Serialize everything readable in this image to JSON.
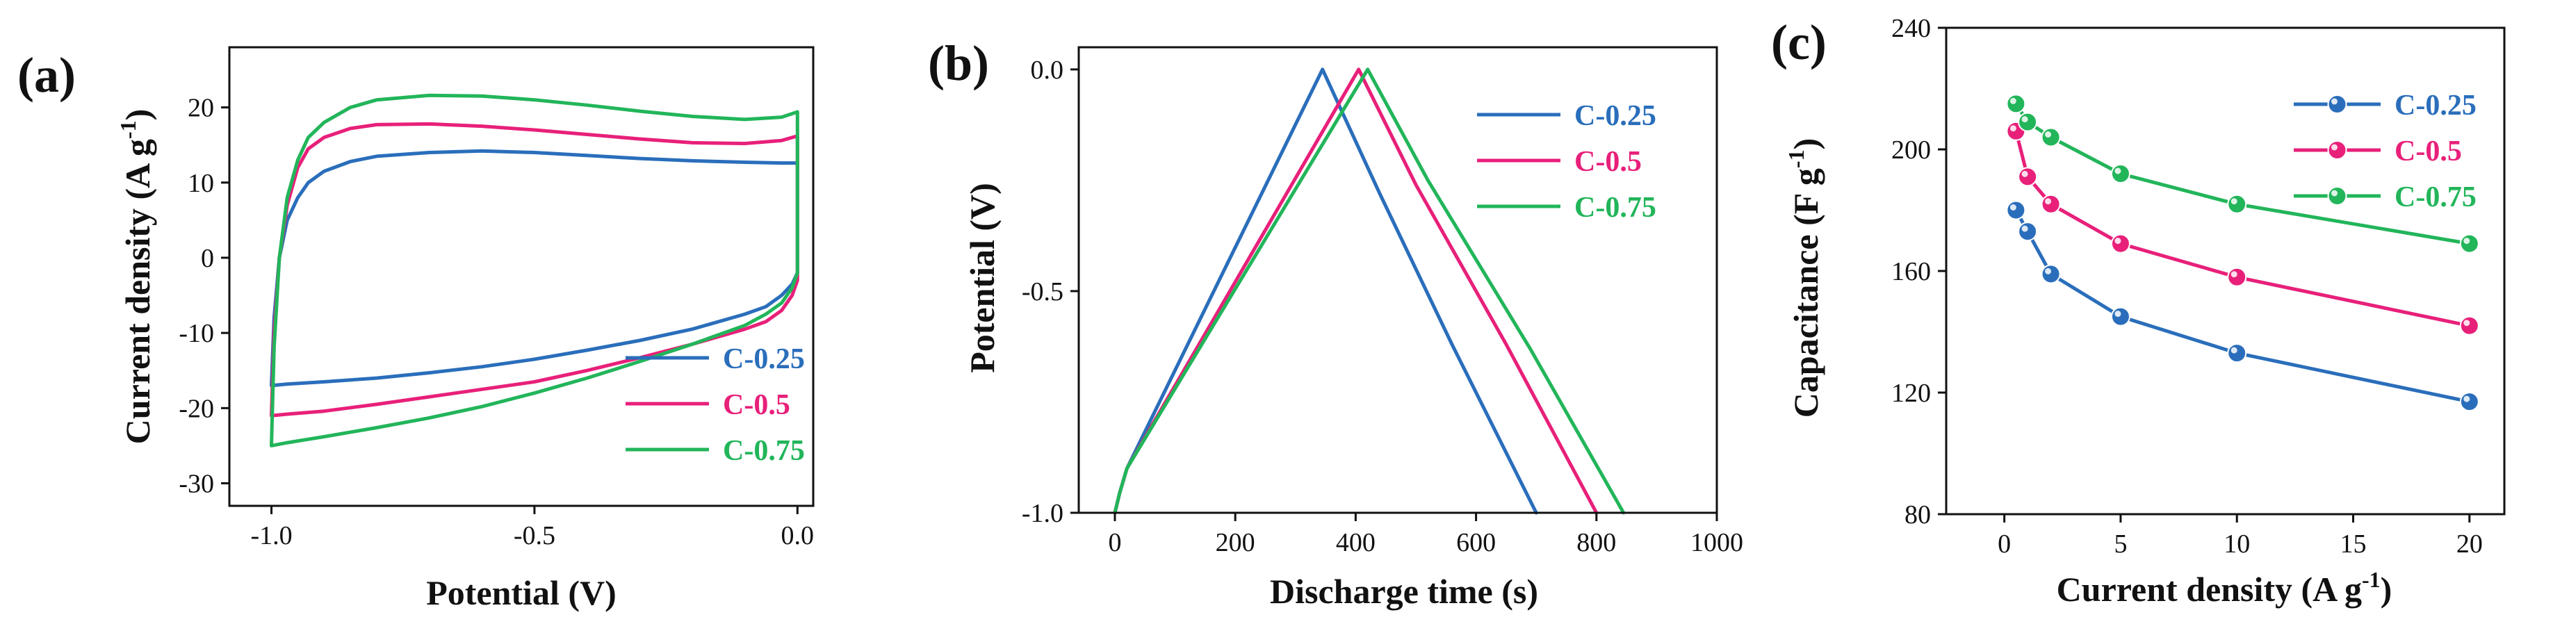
{
  "colors": {
    "C-0.25": "#2a6ebb",
    "C-0.5": "#e8207a",
    "C-0.75": "#22b55a",
    "axis": "#111111"
  },
  "chart_data": [
    {
      "panel": "(a)",
      "type": "line",
      "title": "",
      "xlabel": "Potential (V)",
      "ylabel": "Current density (A g",
      "ylabel_sup": "-1",
      "ylabel_end": ")",
      "xlim": [
        -1.08,
        0.03
      ],
      "ylim": [
        -33,
        28
      ],
      "xticks": [
        -1.0,
        -0.5,
        0.0
      ],
      "xtick_labels": [
        "-1.0",
        "-0.5",
        "0.0"
      ],
      "yticks": [
        -30,
        -20,
        -10,
        0,
        10,
        20
      ],
      "ytick_labels": [
        "-30",
        "-20",
        "-10",
        "0",
        "10",
        "20"
      ],
      "legend_position": "bottom-right",
      "series": [
        {
          "name": "C-0.25",
          "x": [
            -1.0,
            -0.995,
            -0.985,
            -0.97,
            -0.95,
            -0.93,
            -0.9,
            -0.85,
            -0.8,
            -0.7,
            -0.6,
            -0.5,
            -0.4,
            -0.3,
            -0.2,
            -0.1,
            -0.03,
            0.0,
            0.0,
            0.0,
            -0.01,
            -0.03,
            -0.06,
            -0.1,
            -0.2,
            -0.3,
            -0.4,
            -0.5,
            -0.6,
            -0.7,
            -0.8,
            -0.9,
            -0.97,
            -1.0
          ],
          "y": [
            -17.0,
            -8,
            0,
            5,
            8,
            10,
            11.5,
            12.8,
            13.5,
            14.0,
            14.2,
            14.0,
            13.6,
            13.2,
            12.9,
            12.7,
            12.6,
            12.6,
            5,
            -2,
            -3.5,
            -5,
            -6.5,
            -7.5,
            -9.5,
            -11,
            -12.3,
            -13.5,
            -14.5,
            -15.3,
            -16.0,
            -16.5,
            -16.8,
            -17.0
          ]
        },
        {
          "name": "C-0.5",
          "x": [
            -1.0,
            -0.995,
            -0.985,
            -0.97,
            -0.95,
            -0.93,
            -0.9,
            -0.85,
            -0.8,
            -0.7,
            -0.6,
            -0.5,
            -0.4,
            -0.3,
            -0.2,
            -0.1,
            -0.03,
            0.0,
            0.0,
            0.0,
            -0.01,
            -0.03,
            -0.06,
            -0.1,
            -0.2,
            -0.3,
            -0.4,
            -0.5,
            -0.6,
            -0.7,
            -0.8,
            -0.9,
            -0.97,
            -1.0
          ],
          "y": [
            -21.0,
            -10,
            0,
            7,
            12,
            14.5,
            16,
            17.2,
            17.7,
            17.8,
            17.5,
            17.0,
            16.4,
            15.8,
            15.3,
            15.2,
            15.6,
            16.2,
            6,
            -3,
            -5,
            -7,
            -8.5,
            -9.5,
            -11.5,
            -13.3,
            -15,
            -16.5,
            -17.5,
            -18.5,
            -19.5,
            -20.4,
            -20.8,
            -21.0
          ]
        },
        {
          "name": "C-0.75",
          "x": [
            -1.0,
            -0.995,
            -0.985,
            -0.97,
            -0.95,
            -0.93,
            -0.9,
            -0.85,
            -0.8,
            -0.7,
            -0.6,
            -0.5,
            -0.4,
            -0.3,
            -0.2,
            -0.1,
            -0.03,
            0.0,
            0.0,
            0.0,
            -0.01,
            -0.03,
            -0.06,
            -0.1,
            -0.2,
            -0.3,
            -0.4,
            -0.5,
            -0.6,
            -0.7,
            -0.8,
            -0.9,
            -0.97,
            -1.0
          ],
          "y": [
            -25.0,
            -12,
            0,
            8,
            13,
            16,
            18,
            20,
            21,
            21.6,
            21.5,
            21.0,
            20.3,
            19.5,
            18.8,
            18.4,
            18.7,
            19.4,
            7,
            -2,
            -4,
            -6,
            -7.5,
            -9,
            -11.5,
            -13.8,
            -16,
            -18,
            -19.8,
            -21.3,
            -22.6,
            -23.8,
            -24.6,
            -25.0
          ]
        }
      ]
    },
    {
      "panel": "(b)",
      "type": "line",
      "title": "",
      "xlabel": "Discharge time (s)",
      "ylabel": "Potential (V)",
      "xlim": [
        -60,
        1000
      ],
      "ylim": [
        -1.0,
        0.05
      ],
      "xticks": [
        0,
        200,
        400,
        600,
        800,
        1000
      ],
      "xtick_labels": [
        "0",
        "200",
        "400",
        "600",
        "800",
        "1000"
      ],
      "yticks": [
        -1.0,
        -0.5,
        0.0
      ],
      "ytick_labels": [
        "-1.0",
        "-0.5",
        "0.0"
      ],
      "legend_position": "top-right",
      "series": [
        {
          "name": "C-0.25",
          "x": [
            0,
            8,
            20,
            345,
            440,
            560,
            700
          ],
          "y": [
            -1.0,
            -0.955,
            -0.9,
            0.0,
            -0.28,
            -0.62,
            -1.0
          ]
        },
        {
          "name": "C-0.5",
          "x": [
            0,
            8,
            20,
            405,
            500,
            650,
            800
          ],
          "y": [
            -1.0,
            -0.955,
            -0.9,
            0.0,
            -0.26,
            -0.62,
            -1.0
          ]
        },
        {
          "name": "C-0.75",
          "x": [
            0,
            8,
            20,
            420,
            520,
            690,
            845
          ],
          "y": [
            -1.0,
            -0.955,
            -0.9,
            0.0,
            -0.25,
            -0.63,
            -1.0
          ]
        }
      ]
    },
    {
      "panel": "(c)",
      "type": "line",
      "title": "",
      "xlabel": "Current density (A g",
      "xlabel_sup": "-1",
      "xlabel_end": ")",
      "ylabel": "Capacitance (F g",
      "ylabel_sup": "-1",
      "ylabel_end": ")",
      "xlim": [
        -2.5,
        21.5
      ],
      "ylim": [
        80,
        240
      ],
      "xticks": [
        0,
        5,
        10,
        15,
        20
      ],
      "xtick_labels": [
        "0",
        "5",
        "10",
        "15",
        "20"
      ],
      "yticks": [
        80,
        120,
        160,
        200,
        240
      ],
      "ytick_labels": [
        "80",
        "120",
        "160",
        "200",
        "240"
      ],
      "legend_position": "top-right",
      "markers": true,
      "series": [
        {
          "name": "C-0.25",
          "x": [
            0.5,
            1,
            2,
            5,
            10,
            20
          ],
          "y": [
            180,
            173,
            159,
            145,
            133,
            117
          ]
        },
        {
          "name": "C-0.5",
          "x": [
            0.5,
            1,
            2,
            5,
            10,
            20
          ],
          "y": [
            206,
            191,
            182,
            169,
            158,
            142
          ]
        },
        {
          "name": "C-0.75",
          "x": [
            0.5,
            1,
            2,
            5,
            10,
            20
          ],
          "y": [
            215,
            209,
            204,
            192,
            182,
            169
          ]
        }
      ]
    }
  ]
}
